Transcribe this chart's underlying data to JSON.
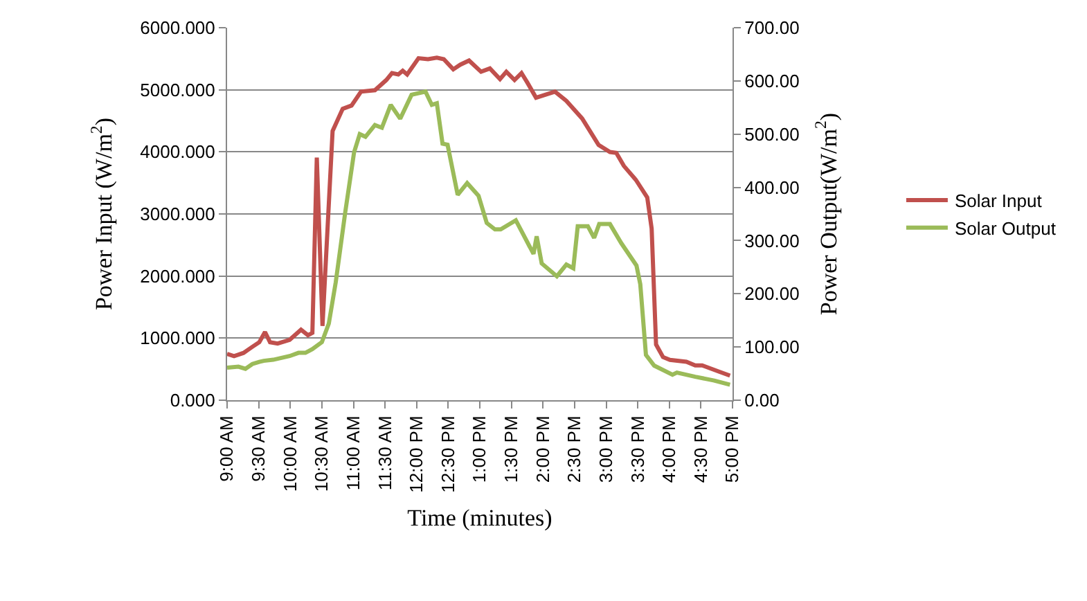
{
  "chart_data": {
    "type": "line",
    "xlabel": "Time (minutes)",
    "ylabel": "Power Input (W/m$^{2}$)",
    "y2label": "Power Output(W/m$^{2}$)",
    "xlim": [
      9,
      17
    ],
    "xticks": [
      {
        "value": 9,
        "label": "9:00 AM"
      },
      {
        "value": 9.5,
        "label": "9:30 AM"
      },
      {
        "value": 10,
        "label": "10:00 AM"
      },
      {
        "value": 10.5,
        "label": "10:30 AM"
      },
      {
        "value": 11,
        "label": "11:00 AM"
      },
      {
        "value": 11.5,
        "label": "11:30 AM"
      },
      {
        "value": 12,
        "label": "12:00 PM"
      },
      {
        "value": 12.5,
        "label": "12:30 PM"
      },
      {
        "value": 13,
        "label": "1:00 PM"
      },
      {
        "value": 13.5,
        "label": "1:30 PM"
      },
      {
        "value": 14,
        "label": "2:00 PM"
      },
      {
        "value": 14.5,
        "label": "2:30 PM"
      },
      {
        "value": 15,
        "label": "3:00 PM"
      },
      {
        "value": 15.5,
        "label": "3:30 PM"
      },
      {
        "value": 16,
        "label": "4:00 PM"
      },
      {
        "value": 16.5,
        "label": "4:30 PM"
      },
      {
        "value": 17,
        "label": "5:00 PM"
      }
    ],
    "ylim": [
      0,
      6000
    ],
    "yticks": [
      {
        "value": 0,
        "label": "0.000"
      },
      {
        "value": 1000,
        "label": "1000.000"
      },
      {
        "value": 2000,
        "label": "2000.000"
      },
      {
        "value": 3000,
        "label": "3000.000"
      },
      {
        "value": 4000,
        "label": "4000.000"
      },
      {
        "value": 5000,
        "label": "5000.000"
      },
      {
        "value": 6000,
        "label": "6000.000"
      }
    ],
    "y2lim": [
      0,
      700
    ],
    "y2ticks": [
      {
        "value": 0,
        "label": "0.00"
      },
      {
        "value": 100,
        "label": "100.00"
      },
      {
        "value": 200,
        "label": "200.00"
      },
      {
        "value": 300,
        "label": "300.00"
      },
      {
        "value": 400,
        "label": "400.00"
      },
      {
        "value": 500,
        "label": "500.00"
      },
      {
        "value": 600,
        "label": "600.00"
      },
      {
        "value": 700,
        "label": "700.00"
      }
    ],
    "grid": "y",
    "legend": "right",
    "marker": "none",
    "line_style": "solid",
    "series": [
      {
        "name": "Solar Input",
        "color": "#c0504d",
        "x": [
          9.0,
          9.11,
          9.26,
          9.4,
          9.51,
          9.6,
          9.68,
          9.8,
          9.99,
          10.17,
          10.28,
          10.35,
          10.42,
          10.51,
          10.67,
          10.83,
          10.97,
          11.12,
          11.34,
          11.52,
          11.61,
          11.71,
          11.78,
          11.85,
          12.03,
          12.18,
          12.32,
          12.43,
          12.58,
          12.69,
          12.83,
          13.02,
          13.16,
          13.32,
          13.42,
          13.55,
          13.66,
          13.75,
          13.89,
          14.19,
          14.37,
          14.62,
          14.88,
          15.06,
          15.16,
          15.28,
          15.47,
          15.65,
          15.72,
          15.79,
          15.9,
          16.01,
          16.27,
          16.41,
          16.52,
          16.78,
          16.96
        ],
        "values": [
          747,
          710,
          762,
          860,
          934,
          1099,
          934,
          912,
          972,
          1136,
          1046,
          1084,
          3909,
          1196,
          4335,
          4694,
          4746,
          4970,
          4993,
          5157,
          5269,
          5247,
          5306,
          5247,
          5508,
          5493,
          5516,
          5493,
          5329,
          5404,
          5471,
          5291,
          5344,
          5172,
          5291,
          5157,
          5269,
          5120,
          4873,
          4970,
          4821,
          4537,
          4111,
          3998,
          3984,
          3774,
          3550,
          3266,
          2765,
          897,
          695,
          650,
          620,
          561,
          561,
          463,
          396
        ]
      },
      {
        "name": "Solar Output",
        "color": "#9bbb59",
        "axis": "y2",
        "x": [
          9.0,
          9.18,
          9.29,
          9.4,
          9.51,
          9.58,
          9.73,
          9.99,
          10.13,
          10.24,
          10.35,
          10.5,
          10.61,
          10.72,
          10.87,
          11.01,
          11.1,
          11.19,
          11.34,
          11.45,
          11.59,
          11.74,
          11.92,
          12.14,
          12.24,
          12.32,
          12.41,
          12.49,
          12.65,
          12.8,
          12.98,
          13.11,
          13.24,
          13.33,
          13.57,
          13.85,
          13.9,
          13.98,
          14.22,
          14.37,
          14.48,
          14.55,
          14.71,
          14.81,
          14.89,
          15.06,
          15.24,
          15.48,
          15.54,
          15.63,
          15.76,
          16.05,
          16.12,
          16.41,
          16.71,
          16.96
        ],
        "values": [
          61,
          63,
          59,
          68,
          72,
          74,
          76,
          83,
          89,
          89,
          96,
          109,
          144,
          222,
          353,
          466,
          500,
          495,
          517,
          512,
          555,
          529,
          574,
          580,
          555,
          558,
          482,
          480,
          386,
          408,
          384,
          333,
          321,
          321,
          338,
          275,
          308,
          257,
          233,
          255,
          248,
          327,
          327,
          305,
          331,
          331,
          295,
          253,
          218,
          85,
          65,
          48,
          52,
          44,
          37,
          29
        ]
      }
    ]
  }
}
